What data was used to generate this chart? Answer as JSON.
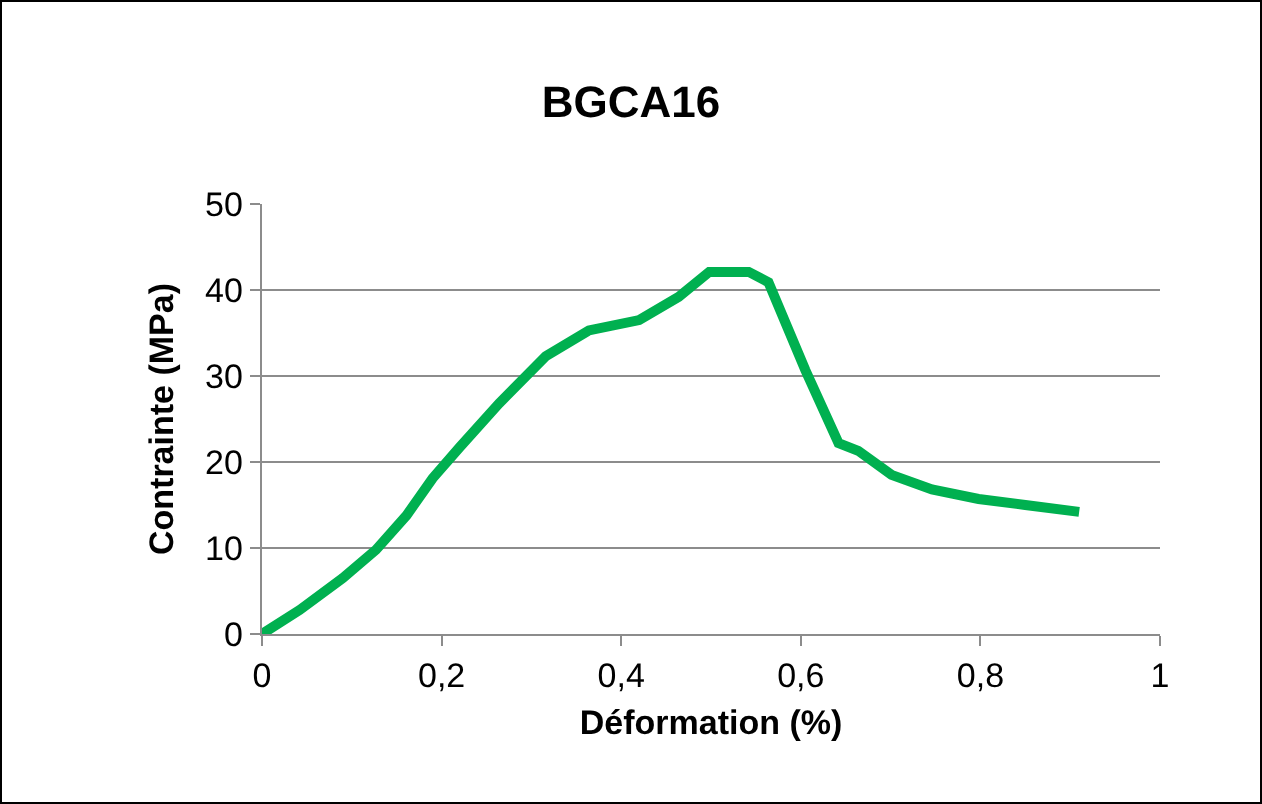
{
  "chart_data": {
    "type": "line",
    "title": "BGCA16",
    "xlabel": "Déformation (%)",
    "ylabel": "Contrainte (MPa)",
    "series": [
      {
        "color": "#00b050",
        "x": [
          0,
          0.042,
          0.09,
          0.127,
          0.161,
          0.19,
          0.22,
          0.264,
          0.316,
          0.364,
          0.42,
          0.464,
          0.498,
          0.542,
          0.564,
          0.605,
          0.642,
          0.664,
          0.701,
          0.746,
          0.798,
          0.85,
          0.91
        ],
        "values": [
          0,
          2.8,
          6.5,
          9.8,
          13.8,
          18.1,
          21.7,
          26.8,
          32.3,
          35.3,
          36.5,
          39.2,
          42.1,
          42.1,
          40.9,
          30.7,
          22.2,
          21.3,
          18.5,
          16.8,
          15.7,
          15.0,
          14.2
        ]
      }
    ],
    "xlim": [
      0,
      1
    ],
    "xticks": [
      0,
      {
        "value": 0.2,
        "label": "0,2"
      },
      {
        "value": 0.4,
        "label": "0,4"
      },
      {
        "value": 0.6,
        "label": "0,6"
      },
      {
        "value": 0.8,
        "label": "0,8"
      },
      1
    ],
    "ylim": [
      0,
      50
    ],
    "yticks": [
      0,
      10,
      20,
      30,
      40,
      50
    ],
    "grid": "y",
    "marker": "none",
    "line_style": "solid"
  }
}
